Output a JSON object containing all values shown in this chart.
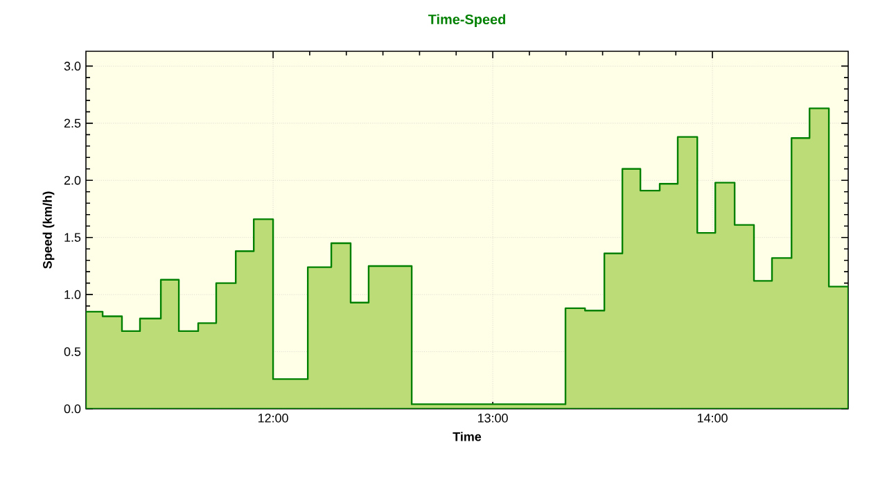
{
  "chart_data": {
    "type": "area",
    "title": "Time-Speed",
    "xlabel": "Time",
    "ylabel": "Speed (km/h)",
    "x": [
      11.148,
      11.224,
      11.312,
      11.394,
      11.489,
      11.571,
      11.659,
      11.741,
      11.83,
      11.912,
      12.0,
      12.158,
      12.265,
      12.353,
      12.435,
      12.631,
      13.331,
      13.42,
      13.508,
      13.59,
      13.672,
      13.76,
      13.842,
      13.931,
      14.013,
      14.101,
      14.189,
      14.271,
      14.36,
      14.442,
      14.53,
      14.618
    ],
    "series": [
      {
        "color": "#bcdc78",
        "values": [
          0.85,
          0.81,
          0.68,
          0.79,
          1.13,
          0.68,
          0.75,
          1.1,
          1.38,
          1.66,
          0.26,
          1.24,
          1.45,
          0.93,
          1.25,
          0.04,
          0.88,
          0.86,
          1.36,
          2.1,
          1.91,
          1.97,
          2.38,
          1.54,
          1.98,
          1.61,
          1.12,
          1.32,
          2.37,
          2.63,
          1.07,
          1.07
        ]
      }
    ],
    "xlim": [
      11.148,
      14.618
    ],
    "ylim": [
      0,
      3.13
    ],
    "xticks": [
      {
        "value": 12,
        "label": "12:00"
      },
      {
        "value": 13,
        "label": "13:00"
      },
      {
        "value": 14,
        "label": "14:00"
      }
    ],
    "yticks": [
      {
        "value": 0,
        "label": "0.0"
      },
      {
        "value": 0.5,
        "label": "0.5"
      },
      {
        "value": 1,
        "label": "1.0"
      },
      {
        "value": 1.5,
        "label": "1.5"
      },
      {
        "value": 2,
        "label": "2.0"
      },
      {
        "value": 2.5,
        "label": "2.5"
      },
      {
        "value": 3,
        "label": "3.0"
      }
    ],
    "grid": true
  }
}
